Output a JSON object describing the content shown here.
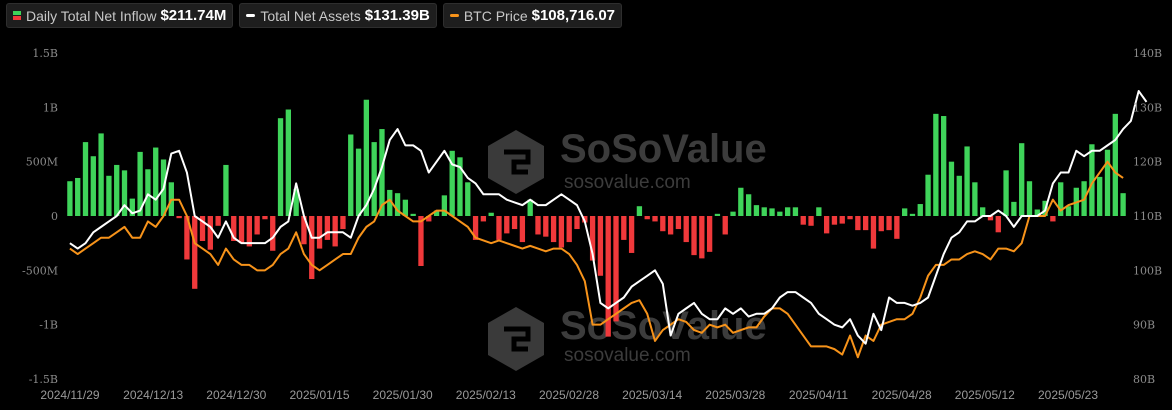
{
  "legend": {
    "inflow_label": "Daily Total Net Inflow",
    "inflow_value": "$211.74M",
    "assets_label": "Total Net Assets",
    "assets_value": "$131.39B",
    "btc_label": "BTC Price",
    "btc_value": "$108,716.07"
  },
  "watermark": {
    "name": "SoSoValue",
    "url": "sosovalue.com"
  },
  "colors": {
    "positive_bar": "#3fd45a",
    "negative_bar": "#f0393b",
    "assets_line": "#ffffff",
    "btc_line": "#f7931a",
    "axis_text": "#8a8a8a",
    "background": "#000000"
  },
  "chart_data": {
    "type": "bar",
    "title": "",
    "y_left": {
      "ticks": [
        "1.5B",
        "1B",
        "500M",
        "0",
        "-500M",
        "-1B",
        "-1.5B"
      ],
      "range": [
        -1500,
        1500
      ],
      "unit": "M"
    },
    "y_right": {
      "ticks": [
        "140B",
        "130B",
        "120B",
        "110B",
        "100B",
        "90B",
        "80B"
      ],
      "range": [
        80,
        140
      ],
      "unit": "B"
    },
    "x_ticks": [
      "2024/11/29",
      "2024/12/13",
      "2024/12/30",
      "2025/01/15",
      "2025/01/30",
      "2025/02/13",
      "2025/02/28",
      "2025/03/14",
      "2025/03/28",
      "2025/04/11",
      "2025/04/28",
      "2025/05/12",
      "2025/05/23"
    ],
    "grid": false,
    "legend_position": "top-left",
    "series": [
      {
        "name": "Daily Total Net Inflow",
        "type": "bar",
        "axis": "left",
        "values": [
          320,
          350,
          680,
          550,
          760,
          370,
          470,
          420,
          160,
          590,
          430,
          630,
          520,
          310,
          -20,
          -400,
          -670,
          -230,
          -310,
          -90,
          470,
          -230,
          -250,
          -280,
          -170,
          -30,
          -320,
          900,
          980,
          250,
          -260,
          -580,
          -300,
          -220,
          -280,
          -120,
          750,
          620,
          1070,
          680,
          800,
          240,
          210,
          150,
          20,
          -460,
          -50,
          50,
          190,
          600,
          540,
          310,
          -220,
          -50,
          30,
          -220,
          -160,
          -120,
          -240,
          150,
          -170,
          -190,
          -240,
          -290,
          -240,
          -120,
          -60,
          -410,
          -550,
          -1110,
          -970,
          -220,
          -340,
          90,
          -30,
          -50,
          -140,
          -170,
          -120,
          -240,
          -360,
          -390,
          -330,
          20,
          -170,
          40,
          260,
          200,
          100,
          80,
          70,
          40,
          80,
          80,
          -80,
          -90,
          80,
          -160,
          -80,
          -70,
          -30,
          -130,
          -130,
          -300,
          -140,
          -130,
          -210,
          70,
          20,
          110,
          380,
          940,
          920,
          500,
          370,
          640,
          310,
          80,
          -40,
          -150,
          420,
          130,
          670,
          320,
          60,
          140,
          -50,
          310,
          90,
          260,
          320,
          660,
          360,
          610,
          940,
          210
        ]
      },
      {
        "name": "Total Net Assets",
        "type": "line",
        "axis": "right",
        "values": [
          105,
          104,
          105,
          107,
          108,
          109,
          110,
          112,
          110.5,
          111,
          114,
          113,
          115,
          121.5,
          122,
          118,
          110,
          109,
          108,
          106,
          109,
          106,
          105,
          105,
          105,
          105,
          106,
          108,
          109,
          116,
          110,
          106,
          106,
          107,
          107,
          107,
          106,
          110,
          112,
          115,
          119,
          124,
          126,
          123,
          123,
          122,
          118,
          120,
          122,
          119.5,
          119,
          117,
          116,
          114,
          114,
          114,
          113,
          112.5,
          112,
          113,
          112,
          112,
          113,
          114,
          113,
          112,
          109,
          103,
          94,
          93,
          94,
          95,
          97,
          98,
          99,
          100,
          97.5,
          88,
          92,
          93,
          94,
          92,
          91,
          91,
          93,
          92,
          93,
          91.5,
          92,
          92,
          93,
          95,
          96,
          96,
          95,
          94,
          92,
          91,
          90,
          89.5,
          91,
          88,
          86.5,
          92,
          89,
          95,
          94,
          94,
          93.5,
          94,
          95,
          99,
          103,
          106,
          107,
          109,
          109,
          110,
          110,
          111,
          110,
          108,
          110,
          110,
          110,
          111,
          116,
          118,
          118,
          122,
          121,
          122,
          122,
          123,
          124,
          126,
          127.5,
          133,
          131
        ]
      },
      {
        "name": "BTC Price",
        "type": "line",
        "axis": "right",
        "values": [
          104,
          103,
          104,
          105,
          106,
          106,
          107,
          108,
          106,
          106,
          109,
          108,
          110,
          113,
          113,
          110,
          105,
          104,
          103,
          101,
          104,
          102,
          101,
          101,
          100,
          100,
          101,
          103,
          104,
          107,
          103,
          101,
          100,
          101,
          102,
          103,
          103,
          106,
          108,
          109,
          112,
          113,
          111,
          110,
          109,
          109,
          110,
          111,
          111,
          110,
          109,
          108,
          106,
          105.5,
          105,
          105.5,
          105,
          104.5,
          104,
          104.5,
          104,
          103.5,
          104,
          104,
          103,
          101,
          98,
          90,
          90,
          91,
          92,
          93,
          94,
          94.5,
          92,
          87,
          89,
          90,
          91,
          90.5,
          89,
          88.5,
          90,
          89.5,
          90,
          88.5,
          89,
          89.5,
          89.5,
          91.5,
          93,
          93,
          92,
          90,
          88,
          86,
          86,
          86,
          85.5,
          84.5,
          88,
          84,
          88,
          87,
          90,
          90.5,
          91,
          91,
          92,
          95,
          99,
          101,
          101,
          102,
          102,
          103,
          103.5,
          103,
          102,
          104,
          104,
          103.5,
          105,
          110,
          110,
          110,
          113,
          111,
          112,
          112.5,
          113,
          116,
          118,
          120,
          118,
          117
        ]
      }
    ]
  }
}
